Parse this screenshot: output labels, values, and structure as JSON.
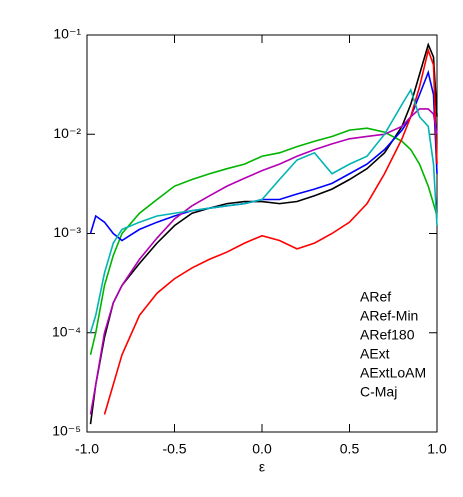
{
  "chart_data": {
    "type": "line",
    "ylog": true,
    "xlabel": "ε",
    "xlim": [
      -1,
      1
    ],
    "ylim": [
      1e-05,
      0.1
    ],
    "xticks": [
      {
        "value": -1,
        "label": "-1.0"
      },
      {
        "value": -0.5,
        "label": "-0.5"
      },
      {
        "value": 0,
        "label": "0.0"
      },
      {
        "value": 0.5,
        "label": "0.5"
      },
      {
        "value": 1,
        "label": "1.0"
      }
    ],
    "yticks": [
      {
        "value": 1e-05,
        "label": "10⁻⁵"
      },
      {
        "value": 0.0001,
        "label": "10⁻⁴"
      },
      {
        "value": 0.001,
        "label": "10⁻³"
      },
      {
        "value": 0.01,
        "label": "10⁻²"
      },
      {
        "value": 0.1,
        "label": "10⁻¹"
      }
    ],
    "legend": "lower right",
    "x": [
      -0.98,
      -0.95,
      -0.9,
      -0.85,
      -0.8,
      -0.7,
      -0.6,
      -0.5,
      -0.4,
      -0.3,
      -0.2,
      -0.1,
      0,
      0.1,
      0.2,
      0.3,
      0.4,
      0.5,
      0.6,
      0.7,
      0.8,
      0.85,
      0.9,
      0.95,
      0.98,
      1.0
    ],
    "series": [
      {
        "name": "ARef",
        "color": "#000000",
        "values": [
          1.2e-05,
          3e-05,
          9e-05,
          0.0002,
          0.0003,
          0.0005,
          0.0008,
          0.0012,
          0.0016,
          0.0018,
          0.002,
          0.0021,
          0.0021,
          0.002,
          0.0021,
          0.0024,
          0.0028,
          0.0035,
          0.0045,
          0.0065,
          0.012,
          0.02,
          0.04,
          0.08,
          0.06,
          0.015
        ]
      },
      {
        "name": "ARef-Min",
        "color": "#00b400",
        "values": [
          6e-05,
          0.0001,
          0.0003,
          0.0006,
          0.001,
          0.0016,
          0.0022,
          0.003,
          0.0035,
          0.004,
          0.0045,
          0.005,
          0.006,
          0.0065,
          0.0075,
          0.0085,
          0.0095,
          0.011,
          0.0115,
          0.0105,
          0.0085,
          0.007,
          0.005,
          0.003,
          0.002,
          0.0015
        ]
      },
      {
        "name": "ARef180",
        "color": "#0000ff",
        "values": [
          0.001,
          0.0015,
          0.0013,
          0.001,
          0.00085,
          0.0011,
          0.0013,
          0.0015,
          0.0017,
          0.0018,
          0.0019,
          0.002,
          0.0022,
          0.0022,
          0.0025,
          0.0028,
          0.0032,
          0.004,
          0.005,
          0.007,
          0.011,
          0.015,
          0.025,
          0.042,
          0.025,
          0.004
        ]
      },
      {
        "name": "AExt",
        "color": "#ff0000",
        "values": [
          null,
          null,
          1.5e-05,
          3e-05,
          6e-05,
          0.00015,
          0.00025,
          0.00035,
          0.00045,
          0.00055,
          0.00065,
          0.0008,
          0.00095,
          0.00085,
          0.0007,
          0.0008,
          0.001,
          0.0013,
          0.002,
          0.004,
          0.009,
          0.015,
          0.03,
          0.07,
          0.05,
          0.005
        ]
      },
      {
        "name": "AExtLoAM",
        "color": "#b400b4",
        "values": [
          1.5e-05,
          3e-05,
          0.0001,
          0.0002,
          0.0003,
          0.00055,
          0.0009,
          0.0014,
          0.0019,
          0.0024,
          0.003,
          0.0036,
          0.0043,
          0.005,
          0.006,
          0.007,
          0.008,
          0.009,
          0.0095,
          0.01,
          0.012,
          0.015,
          0.018,
          0.018,
          0.016,
          0.01
        ]
      },
      {
        "name": "C-Maj",
        "color": "#00b4b4",
        "values": [
          0.0001,
          0.00015,
          0.0004,
          0.0008,
          0.0011,
          0.0013,
          0.0015,
          0.0016,
          0.0017,
          0.0018,
          0.0019,
          0.002,
          0.0022,
          0.0035,
          0.0055,
          0.0065,
          0.004,
          0.005,
          0.006,
          0.01,
          0.02,
          0.028,
          0.015,
          0.012,
          0.005,
          0.0012
        ]
      }
    ]
  }
}
